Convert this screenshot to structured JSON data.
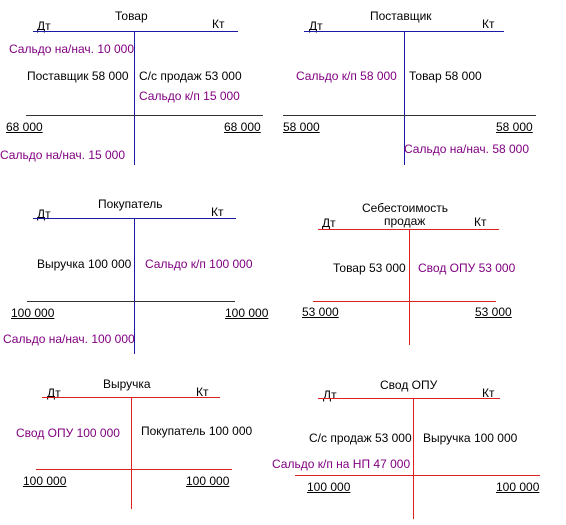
{
  "accounts": [
    {
      "title": "Товар",
      "debit_label": "Дт",
      "credit_label": "Кт",
      "opening_balance": "Сальдо на/нач. 10 000",
      "debit_entry": "Поставщик 58 000",
      "credit_entry": "С/с продаж 53 000",
      "credit_balance": "Сальдо к/п  15 000",
      "debit_total": "68 000",
      "credit_total": "68 000",
      "closing_balance": "Сальдо на/нач. 15 000"
    },
    {
      "title": "Поставщик",
      "debit_label": "Дт",
      "credit_label": "Кт",
      "debit_balance": "Сальдо к/п  58 000",
      "credit_entry": "Товар  58 000",
      "debit_total": "58 000",
      "credit_total": "58 000",
      "closing_balance": "Сальдо на/нач. 58 000"
    },
    {
      "title": "Покупатель",
      "debit_label": "Дт",
      "credit_label": "Кт",
      "debit_entry": "Выручка 100 000",
      "credit_balance": "Сальдо к/п  100 000",
      "debit_total": "100 000",
      "credit_total": "100 000",
      "closing_balance": "Сальдо на/нач. 100 000"
    },
    {
      "title_line1": "Себестоимость",
      "title_line2": "продаж",
      "debit_label": "Дт",
      "credit_label": "Кт",
      "debit_entry": "Товар 53 000",
      "credit_entry": "Свод ОПУ  53 000",
      "debit_total": "53 000",
      "credit_total": "53 000"
    },
    {
      "title": "Выручка",
      "debit_label": "Дт",
      "credit_label": "Кт",
      "debit_entry": "Свод ОПУ 100 000",
      "credit_entry": "Покупатель 100 000",
      "debit_total": "100 000",
      "credit_total": "100 000"
    },
    {
      "title": "Свод ОПУ",
      "debit_label": "Дт",
      "credit_label": "Кт",
      "debit_entry": "С/с продаж 53 000",
      "credit_entry": "Выручка 100 000",
      "balance": "Сальдо к/п на НП  47 000",
      "debit_total": "100 000",
      "credit_total": "100 000"
    }
  ],
  "colors": {
    "blue_line": "#1a1aa6",
    "red_line": "#e02020",
    "purple_text": "#800080"
  }
}
